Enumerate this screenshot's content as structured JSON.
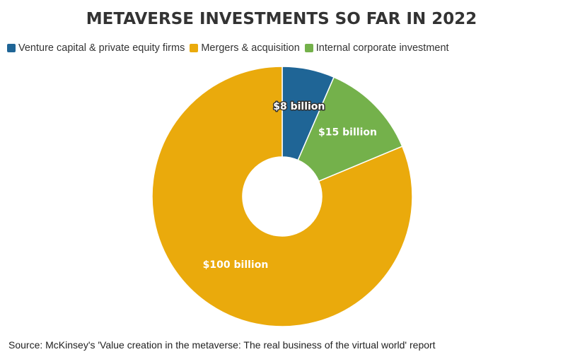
{
  "chart_data": {
    "type": "pie",
    "title": "METAVERSE INVESTMENTS SO FAR IN 2022",
    "donut": true,
    "legend_position": "top-left",
    "series": [
      {
        "name": "Venture capital & private equity firms",
        "value": 8,
        "label": "$8 billion",
        "color": "#1f6596"
      },
      {
        "name": "Mergers & acquisition",
        "value": 100,
        "label": "$100 billion",
        "color": "#eaaa0c"
      },
      {
        "name": "Internal corporate investment",
        "value": 15,
        "label": "$15 billion",
        "color": "#74b14b"
      }
    ],
    "source": "Source: McKinsey's 'Value creation in the metaverse: The real business of the virtual world' report"
  }
}
